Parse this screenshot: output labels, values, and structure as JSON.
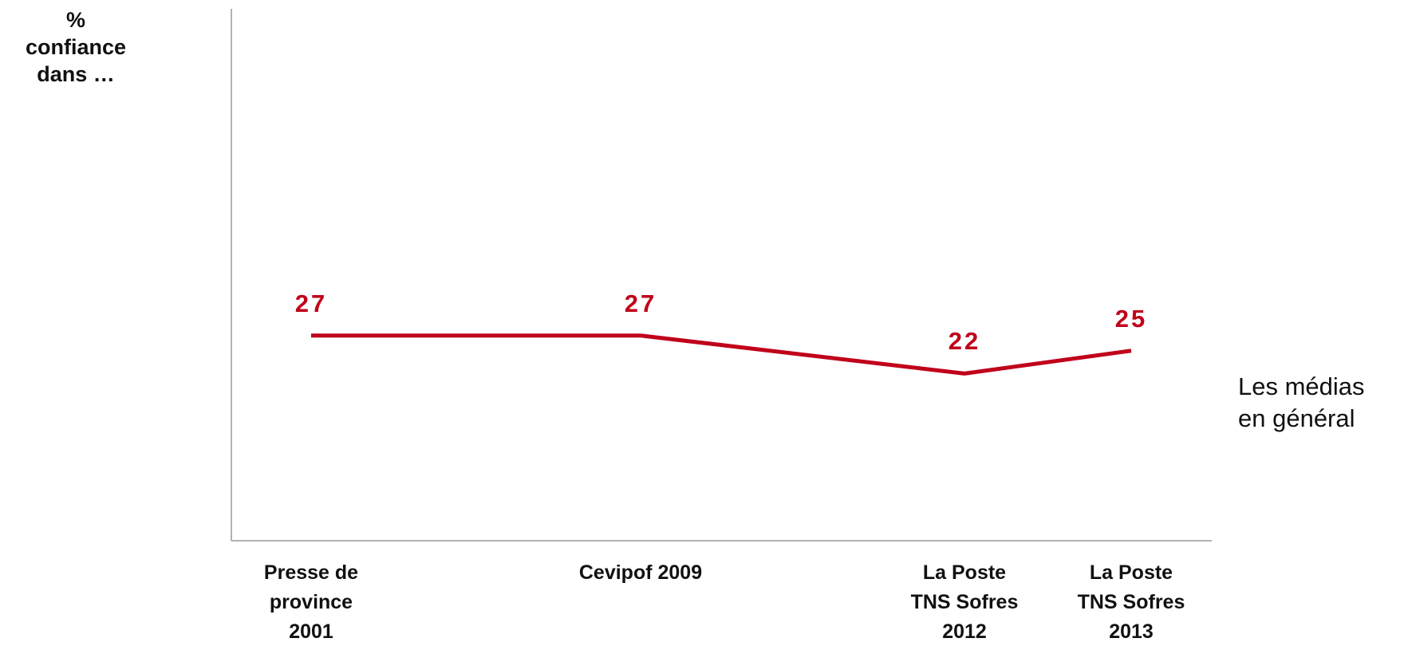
{
  "chart_data": {
    "type": "line",
    "y_label": "%\nconfiance\ndans …",
    "categories": [
      "Presse de\nprovince\n2001",
      "Cevipof 2009",
      "La Poste\nTNS Sofres\n2012",
      "La Poste\nTNS Sofres\n2013"
    ],
    "series": [
      {
        "name": "Les médias\nen général",
        "color": "#c0001a",
        "values": [
          27,
          27,
          22,
          25
        ]
      }
    ],
    "ylim": [
      0,
      70
    ]
  }
}
